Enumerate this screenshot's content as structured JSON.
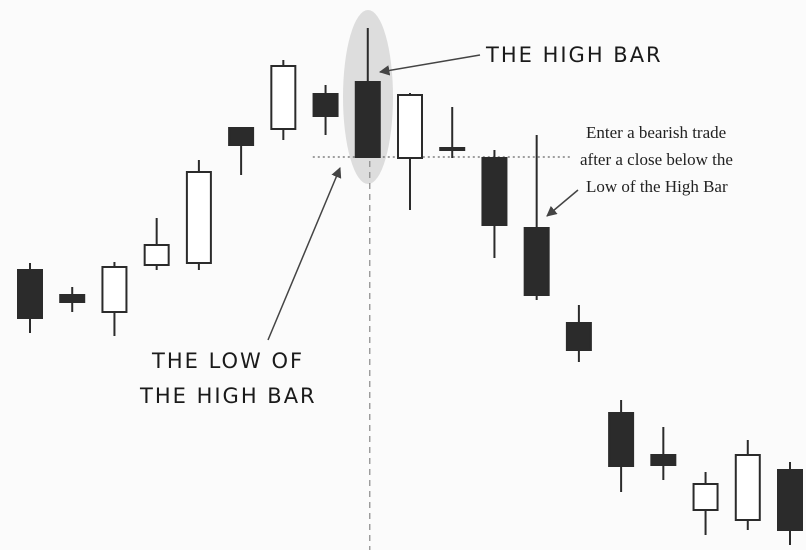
{
  "chart_data": {
    "type": "candlestick",
    "annotations": {
      "high_bar": "THE HIGH BAR",
      "low_of_high_bar": [
        "THE LOW OF",
        "THE HIGH BAR"
      ],
      "entry_note": [
        "Enter a bearish trade",
        "after a close below the",
        "Low of the High Bar"
      ]
    },
    "open": [
      56,
      51,
      47.6,
      57,
      57.4,
      84.4,
      84.2,
      91.2,
      93.6,
      78.4,
      80,
      78.4,
      64.4,
      45.4,
      27.4,
      19,
      8,
      6,
      16
    ],
    "high": [
      57.4,
      52.6,
      57.6,
      66.4,
      78,
      84.4,
      98,
      93,
      104.4,
      91.4,
      88.6,
      80,
      83,
      49,
      30,
      24.6,
      15.6,
      22,
      17.6
    ],
    "low": [
      43.4,
      47.6,
      42.8,
      56,
      56,
      75,
      82,
      83,
      78.6,
      68,
      78.4,
      58.4,
      50,
      37.6,
      11.6,
      14,
      3,
      4,
      1
    ],
    "close": [
      46.4,
      49.6,
      56.6,
      61,
      75.6,
      81,
      96.8,
      86.8,
      78.6,
      91,
      80.4,
      65,
      51,
      40,
      16.8,
      17,
      13.2,
      19,
      4
    ],
    "up_color": "#ffffff",
    "down_color": "#2b2b2b",
    "edge_color": "#2b2b2b",
    "ylim": [
      0,
      110
    ]
  }
}
